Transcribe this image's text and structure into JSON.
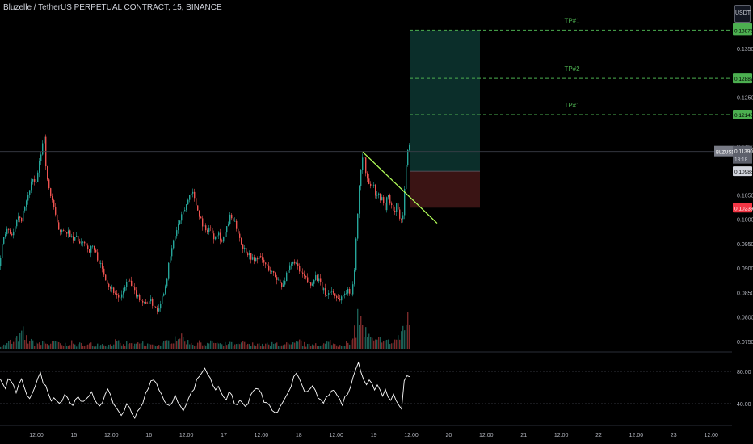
{
  "header": {
    "title": "Bluzelle / TetherUS PERPETUAL CONTRACT, 15, BINANCE",
    "currency": "USDT"
  },
  "colors": {
    "up": "#26a69a",
    "down": "#ef5350",
    "target_line": "#4caf50",
    "trendline": "#b2ff59",
    "profit_zone": "#0b2e2a",
    "loss_zone": "#3a1414",
    "rsi_line": "#ffffff"
  },
  "chart_data": {
    "type": "candlestick",
    "symbol_tag": "BLZUSDT.P",
    "x_ticks": [
      "12:00",
      "15",
      "12:00",
      "16",
      "12:00",
      "17",
      "12:00",
      "18",
      "12:00",
      "19",
      "12:00",
      "20",
      "12:00",
      "21",
      "12:00",
      "22",
      "12:00",
      "23",
      "12:00"
    ],
    "y_ticks": [
      "0.13500",
      "0.12500",
      "0.11500",
      "0.10500",
      "0.10000",
      "0.09500",
      "0.09000",
      "0.08500",
      "0.08000",
      "0.07500"
    ],
    "ylim": [
      0.0735,
      0.1408
    ],
    "price_path": [
      [
        0,
        0.0905
      ],
      [
        2,
        0.094
      ],
      [
        5,
        0.0965
      ],
      [
        9,
        0.0985
      ],
      [
        14,
        0.097
      ],
      [
        18,
        0.0975
      ],
      [
        22,
        0.1005
      ],
      [
        26,
        0.0995
      ],
      [
        30,
        0.102
      ],
      [
        33,
        0.1035
      ],
      [
        36,
        0.1055
      ],
      [
        40,
        0.1085
      ],
      [
        44,
        0.1065
      ],
      [
        47,
        0.1095
      ],
      [
        50,
        0.1125
      ],
      [
        53,
        0.1155
      ],
      [
        55,
        0.1172
      ],
      [
        58,
        0.1085
      ],
      [
        62,
        0.1055
      ],
      [
        66,
        0.1035
      ],
      [
        70,
        0.0995
      ],
      [
        74,
        0.0975
      ],
      [
        78,
        0.0985
      ],
      [
        82,
        0.0965
      ],
      [
        86,
        0.0975
      ],
      [
        90,
        0.0955
      ],
      [
        95,
        0.0965
      ],
      [
        100,
        0.0945
      ],
      [
        105,
        0.0955
      ],
      [
        110,
        0.0935
      ],
      [
        115,
        0.0945
      ],
      [
        120,
        0.0925
      ],
      [
        125,
        0.0905
      ],
      [
        130,
        0.0885
      ],
      [
        135,
        0.0865
      ],
      [
        140,
        0.0855
      ],
      [
        145,
        0.0845
      ],
      [
        150,
        0.0835
      ],
      [
        155,
        0.0865
      ],
      [
        160,
        0.0875
      ],
      [
        165,
        0.0855
      ],
      [
        170,
        0.0845
      ],
      [
        175,
        0.0835
      ],
      [
        180,
        0.0825
      ],
      [
        185,
        0.0835
      ],
      [
        190,
        0.0825
      ],
      [
        195,
        0.0815
      ],
      [
        200,
        0.0835
      ],
      [
        205,
        0.0865
      ],
      [
        210,
        0.0915
      ],
      [
        215,
        0.0955
      ],
      [
        220,
        0.0985
      ],
      [
        225,
        0.1005
      ],
      [
        230,
        0.1025
      ],
      [
        234,
        0.1045
      ],
      [
        238,
        0.1062
      ],
      [
        242,
        0.1035
      ],
      [
        246,
        0.1015
      ],
      [
        250,
        0.0995
      ],
      [
        255,
        0.0975
      ],
      [
        260,
        0.0985
      ],
      [
        265,
        0.0965
      ],
      [
        270,
        0.0975
      ],
      [
        275,
        0.0955
      ],
      [
        280,
        0.0975
      ],
      [
        285,
        0.1005
      ],
      [
        290,
        0.0995
      ],
      [
        295,
        0.0975
      ],
      [
        300,
        0.0945
      ],
      [
        305,
        0.0935
      ],
      [
        310,
        0.0925
      ],
      [
        315,
        0.0915
      ],
      [
        320,
        0.0925
      ],
      [
        325,
        0.0915
      ],
      [
        330,
        0.0905
      ],
      [
        335,
        0.0895
      ],
      [
        340,
        0.0885
      ],
      [
        345,
        0.0875
      ],
      [
        350,
        0.0865
      ],
      [
        355,
        0.0885
      ],
      [
        360,
        0.0905
      ],
      [
        365,
        0.0915
      ],
      [
        370,
        0.0895
      ],
      [
        375,
        0.0885
      ],
      [
        380,
        0.0875
      ],
      [
        385,
        0.0865
      ],
      [
        390,
        0.0885
      ],
      [
        395,
        0.0875
      ],
      [
        400,
        0.0855
      ],
      [
        405,
        0.0845
      ],
      [
        410,
        0.0855
      ],
      [
        415,
        0.0845
      ],
      [
        420,
        0.0835
      ],
      [
        425,
        0.0845
      ],
      [
        430,
        0.0855
      ],
      [
        434,
        0.0845
      ],
      [
        438,
        0.0875
      ],
      [
        441,
        0.0955
      ],
      [
        444,
        0.1045
      ],
      [
        447,
        0.1105
      ],
      [
        450,
        0.1135
      ],
      [
        453,
        0.1095
      ],
      [
        456,
        0.1075
      ],
      [
        459,
        0.1065
      ],
      [
        462,
        0.1075
      ],
      [
        465,
        0.1045
      ],
      [
        468,
        0.1055
      ],
      [
        471,
        0.1035
      ],
      [
        474,
        0.1045
      ],
      [
        477,
        0.1025
      ],
      [
        480,
        0.1055
      ],
      [
        483,
        0.1035
      ],
      [
        486,
        0.1025
      ],
      [
        489,
        0.1015
      ],
      [
        492,
        0.1035
      ],
      [
        495,
        0.1005
      ],
      [
        498,
        0.0995
      ],
      [
        500,
        0.1025
      ],
      [
        502,
        0.1095
      ],
      [
        504,
        0.1135
      ],
      [
        507,
        0.1148
      ],
      [
        509,
        0.1115
      ]
    ],
    "current_price": {
      "symbol": "BLZUSDT.P",
      "price": "0.11390",
      "countdown": "13:18",
      "value": 0.1139
    },
    "entry": {
      "label": "0.10986",
      "value": 0.10986
    },
    "stop_loss": {
      "label": "0.10239",
      "value": 0.10239
    },
    "take_profits": [
      {
        "name": "TP#1",
        "label": "0.12146",
        "value": 0.12146
      },
      {
        "name": "TP#2",
        "label": "0.12887",
        "value": 0.12887
      },
      {
        "name": "TP#1",
        "label": "0.13875",
        "value": 0.13875
      }
    ],
    "top_label": {
      "label": "0.13917",
      "value": 0.13917
    },
    "rsi": {
      "levels": [
        "80.00",
        "40.00"
      ],
      "ylim": [
        20,
        100
      ],
      "values": [
        70,
        64,
        58,
        72,
        66,
        60,
        55,
        62,
        68,
        58,
        52,
        48,
        55,
        62,
        70,
        76,
        68,
        60,
        52,
        46,
        50,
        44,
        40,
        46,
        52,
        48,
        42,
        38,
        44,
        50,
        46,
        40,
        44,
        48,
        52,
        46,
        42,
        38,
        44,
        50,
        55,
        48,
        42,
        36,
        30,
        26,
        32,
        38,
        34,
        28,
        24,
        30,
        36,
        42,
        50,
        58,
        66,
        72,
        64,
        56,
        50,
        46,
        40,
        36,
        42,
        48,
        44,
        38,
        34,
        40,
        46,
        52,
        60,
        68,
        74,
        80,
        84,
        78,
        70,
        64,
        58,
        62,
        56,
        50,
        46,
        52,
        48,
        42,
        38,
        44,
        40,
        36,
        42,
        48,
        54,
        60,
        56,
        50,
        44,
        40,
        36,
        32,
        30,
        28,
        34,
        40,
        46,
        52,
        62,
        74,
        80,
        72,
        66,
        58,
        52,
        56,
        60,
        54,
        48,
        44,
        40,
        46,
        52,
        58,
        54,
        48,
        44,
        40,
        46,
        52,
        60,
        72,
        84,
        88,
        80,
        72,
        66,
        70,
        64,
        58,
        62,
        56,
        52,
        56,
        50,
        46,
        50,
        44,
        40,
        36,
        70,
        76,
        74
      ]
    },
    "volume_profile": [
      3,
      4,
      6,
      5,
      8,
      10,
      14,
      9,
      7,
      6,
      5,
      4,
      6,
      5,
      4,
      5,
      6,
      4,
      3,
      4,
      5,
      4,
      3,
      4,
      5,
      3,
      4,
      3,
      4,
      5,
      4,
      3,
      4,
      6,
      5,
      4,
      3,
      5,
      4,
      3,
      4,
      5,
      3,
      4,
      3,
      4,
      3,
      4,
      5,
      6,
      8,
      10,
      12,
      9,
      7,
      6,
      5,
      4,
      5,
      6,
      4,
      5,
      6,
      5,
      4,
      3,
      4,
      5,
      4,
      3,
      4,
      5,
      4,
      3,
      4,
      5,
      4,
      3,
      4,
      3,
      4,
      5,
      4,
      3,
      4,
      3,
      4,
      5,
      6,
      4,
      3,
      4,
      5,
      4,
      3,
      4,
      5,
      6,
      4,
      3,
      4,
      5,
      4,
      6,
      18,
      28,
      22,
      14,
      10,
      8,
      6,
      8,
      10,
      7,
      6,
      5,
      8,
      10,
      14,
      20,
      30
    ]
  }
}
